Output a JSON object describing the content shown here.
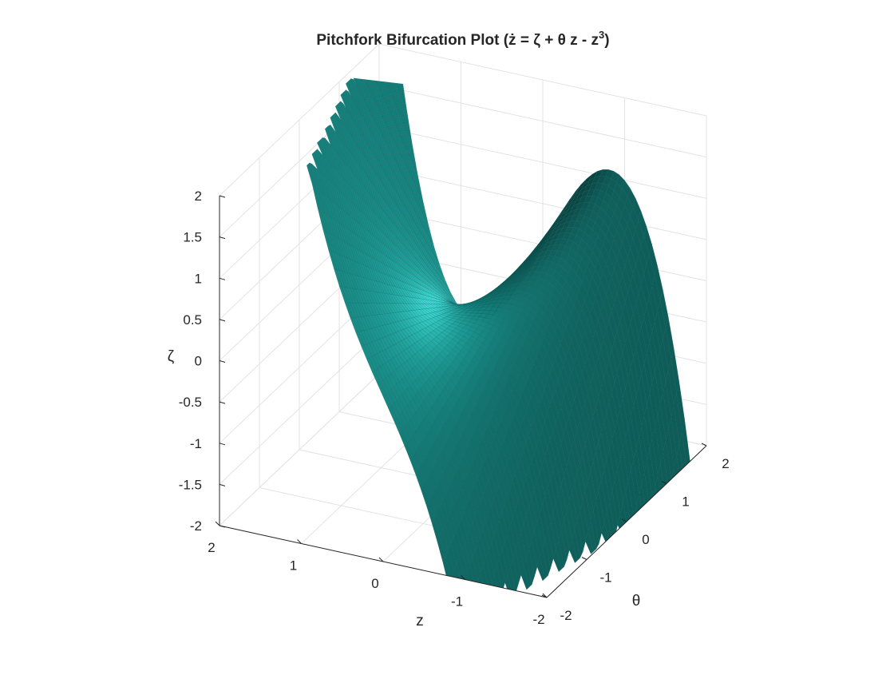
{
  "chart_data": {
    "type": "surface",
    "title": "Pitchfork Bifurcation Plot (ż = ζ + θ z - z",
    "title_superscript": "3",
    "title_end": ")",
    "surface_equation": "ζ = z^3 - θ z",
    "xlabel": "z",
    "ylabel": "θ",
    "zlabel": "ζ",
    "xlim": [
      -2,
      2
    ],
    "ylim": [
      -2,
      2
    ],
    "zlim": [
      -2,
      2
    ],
    "x_ticks": [
      "2",
      "1",
      "0",
      "-1",
      "-2"
    ],
    "y_ticks": [
      "2",
      "1",
      "0",
      "-1",
      "-2"
    ],
    "z_ticks": [
      "2",
      "1.5",
      "1",
      "0.5",
      "0",
      "-0.5",
      "-1",
      "-1.5",
      "-2"
    ],
    "grid": true,
    "surface_color": "#1a9e98",
    "edge_color": "#0a5f5b"
  }
}
